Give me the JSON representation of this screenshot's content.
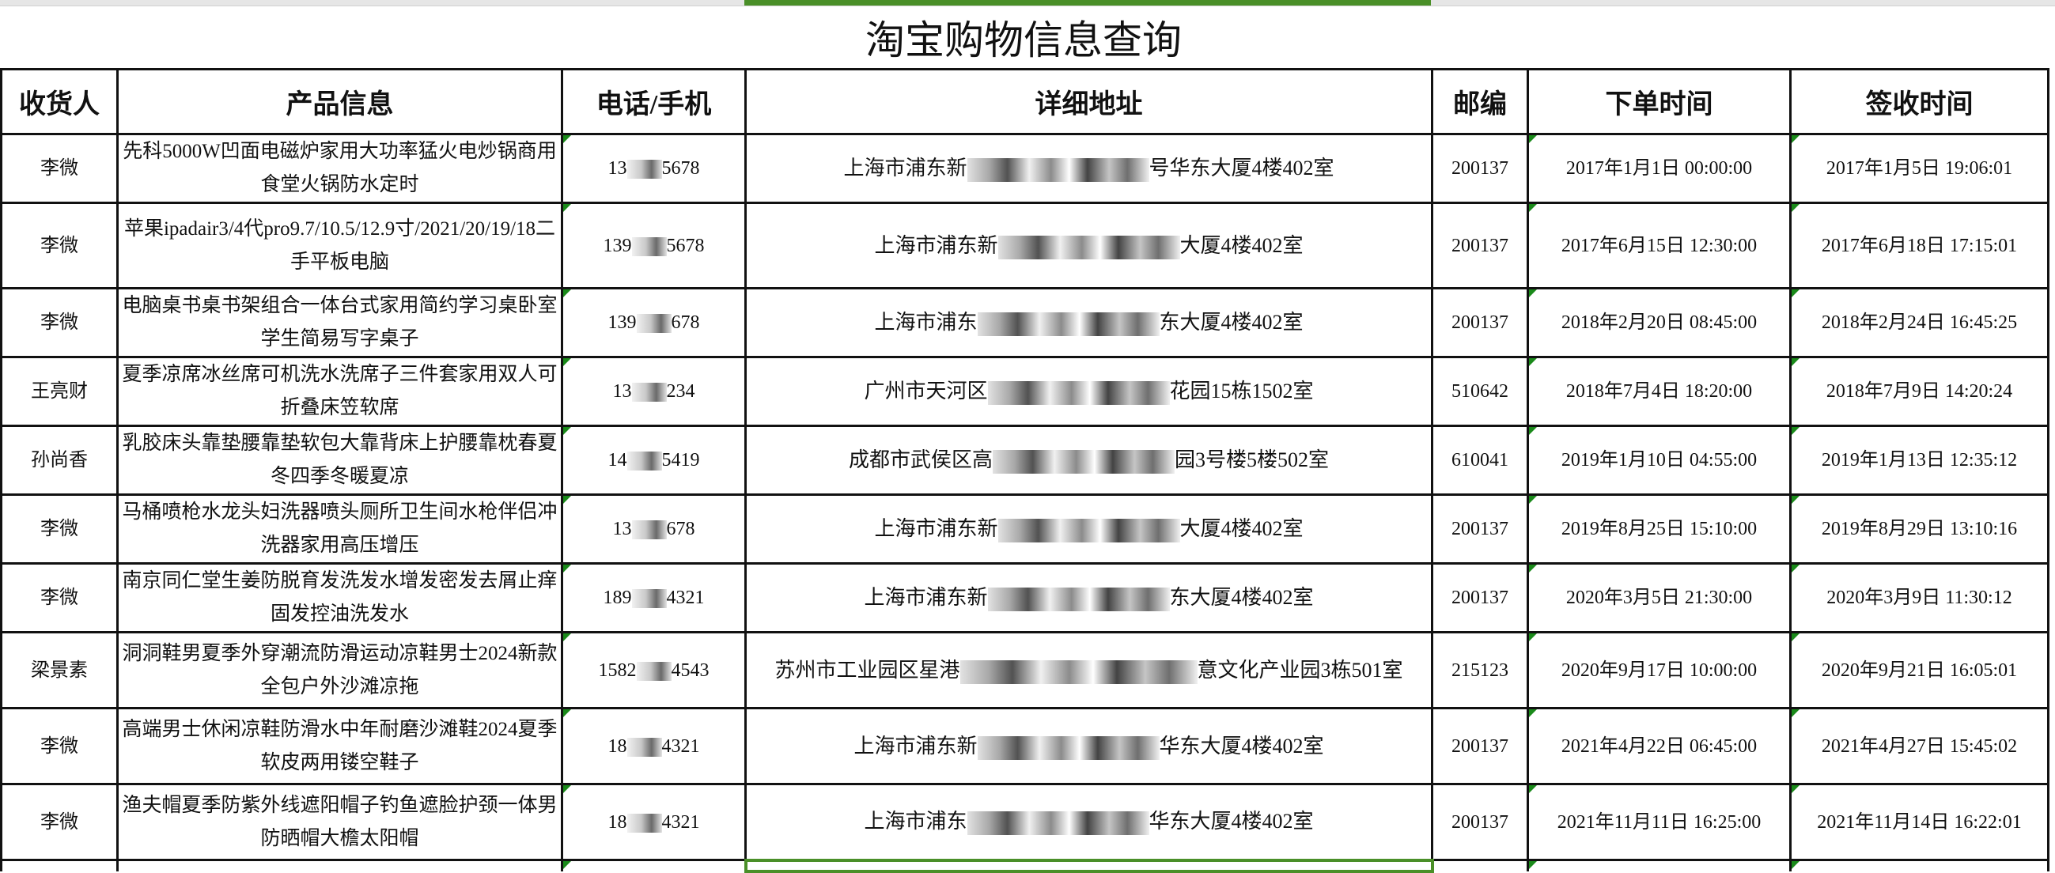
{
  "title": "淘宝购物信息查询",
  "accent_color": "#4a8f28",
  "headers": [
    "收货人",
    "产品信息",
    "电话/手机",
    "详细地址",
    "邮编",
    "下单时间",
    "签收时间"
  ],
  "rows": [
    {
      "name": "李微",
      "product": "先科5000W凹面电磁炉家用大功率猛火电炒锅商用食堂火锅防水定时",
      "phone_prefix": "13",
      "phone_suffix": "5678",
      "addr_prefix": "上海市浦东新",
      "addr_suffix": "号华东大厦4楼402室",
      "zip": "200137",
      "order_time": "2017年1月1日 00:00:00",
      "sign_time": "2017年1月5日 19:06:01"
    },
    {
      "name": "李微",
      "product": "苹果ipadair3/4代pro9.7/10.5/12.9寸/2021/20/19/18二手平板电脑",
      "phone_prefix": "139",
      "phone_suffix": "5678",
      "addr_prefix": "上海市浦东新",
      "addr_suffix": "大厦4楼402室",
      "zip": "200137",
      "order_time": "2017年6月15日 12:30:00",
      "sign_time": "2017年6月18日 17:15:01"
    },
    {
      "name": "李微",
      "product": "电脑桌书桌书架组合一体台式家用简约学习桌卧室学生简易写字桌子",
      "phone_prefix": "139",
      "phone_suffix": "678",
      "addr_prefix": "上海市浦东",
      "addr_suffix": "东大厦4楼402室",
      "zip": "200137",
      "order_time": "2018年2月20日 08:45:00",
      "sign_time": "2018年2月24日 16:45:25"
    },
    {
      "name": "王亮财",
      "product": "夏季凉席冰丝席可机洗水洗席子三件套家用双人可折叠床笠软席",
      "phone_prefix": "13",
      "phone_suffix": "234",
      "addr_prefix": "广州市天河区",
      "addr_suffix": "花园15栋1502室",
      "zip": "510642",
      "order_time": "2018年7月4日 18:20:00",
      "sign_time": "2018年7月9日 14:20:24"
    },
    {
      "name": "孙尚香",
      "product": "乳胶床头靠垫腰靠垫软包大靠背床上护腰靠枕春夏冬四季冬暖夏凉",
      "phone_prefix": "14",
      "phone_suffix": "5419",
      "addr_prefix": "成都市武侯区高",
      "addr_suffix": "园3号楼5楼502室",
      "zip": "610041",
      "order_time": "2019年1月10日 04:55:00",
      "sign_time": "2019年1月13日 12:35:12"
    },
    {
      "name": "李微",
      "product": "马桶喷枪水龙头妇洗器喷头厕所卫生间水枪伴侣冲洗器家用高压增压",
      "phone_prefix": "13",
      "phone_suffix": "678",
      "addr_prefix": "上海市浦东新",
      "addr_suffix": "大厦4楼402室",
      "zip": "200137",
      "order_time": "2019年8月25日 15:10:00",
      "sign_time": "2019年8月29日 13:10:16"
    },
    {
      "name": "李微",
      "product": "南京同仁堂生姜防脱育发洗发水增发密发去屑止痒固发控油洗发水",
      "phone_prefix": "189",
      "phone_suffix": "4321",
      "addr_prefix": "上海市浦东新",
      "addr_suffix": "东大厦4楼402室",
      "zip": "200137",
      "order_time": "2020年3月5日 21:30:00",
      "sign_time": "2020年3月9日 11:30:12"
    },
    {
      "name": "梁景素",
      "product": "洞洞鞋男夏季外穿潮流防滑运动凉鞋男士2024新款全包户外沙滩凉拖",
      "phone_prefix": "1582",
      "phone_suffix": "4543",
      "addr_prefix": "苏州市工业园区星港",
      "addr_suffix": "意文化产业园3栋501室",
      "zip": "215123",
      "order_time": "2020年9月17日 10:00:00",
      "sign_time": "2020年9月21日 16:05:01"
    },
    {
      "name": "李微",
      "product": "高端男士休闲凉鞋防滑水中年耐磨沙滩鞋2024夏季软皮两用镂空鞋子",
      "phone_prefix": "18",
      "phone_suffix": "4321",
      "addr_prefix": "上海市浦东新",
      "addr_suffix": "华东大厦4楼402室",
      "zip": "200137",
      "order_time": "2021年4月22日 06:45:00",
      "sign_time": "2021年4月27日 15:45:02"
    },
    {
      "name": "李微",
      "product": "渔夫帽夏季防紫外线遮阳帽子钓鱼遮脸护颈一体男防晒帽大檐太阳帽",
      "phone_prefix": "18",
      "phone_suffix": "4321",
      "addr_prefix": "上海市浦东",
      "addr_suffix": "华东大厦4楼402室",
      "zip": "200137",
      "order_time": "2021年11月11日 16:25:00",
      "sign_time": "2021年11月14日 16:22:01"
    }
  ]
}
